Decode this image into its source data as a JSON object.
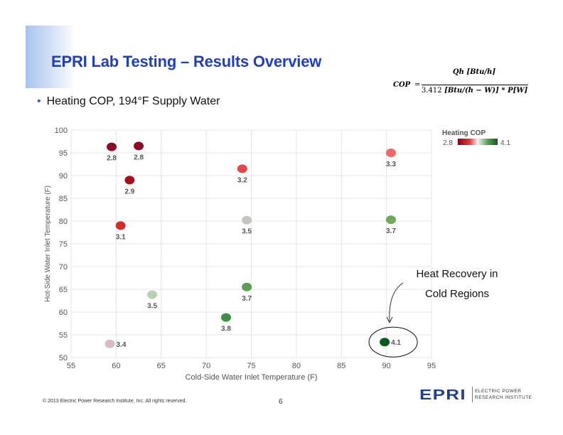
{
  "slide": {
    "title": "EPRI Lab Testing – Results Overview",
    "bullet": "Heating COP, 194°F Supply Water",
    "footer": "© 2013 Electric Power Research Institute, Inc. All rights reserved.",
    "page_number": "6",
    "logo": {
      "mark": "EPRI",
      "line1": "ELECTRIC POWER",
      "line2": "RESEARCH INSTITUTE"
    },
    "formula": {
      "lhs": "COP",
      "eq": "=",
      "numerator": "Qh [Btu/h]",
      "denominator_const": "3.412",
      "denominator_rest": "[Btu/(h − W)] * P[W]"
    },
    "annotation": {
      "line1": "Heat Recovery in",
      "line2": "Cold Regions"
    }
  },
  "chart_data": {
    "type": "scatter",
    "xlabel": "Cold-Side Water Inlet Temperature (F)",
    "ylabel": "Hot-Side Water Inlet Temperature (F)",
    "xlim": [
      55,
      95
    ],
    "ylim": [
      50,
      100
    ],
    "xticks": [
      55,
      60,
      65,
      70,
      75,
      80,
      85,
      90,
      95
    ],
    "yticks": [
      50,
      55,
      60,
      65,
      70,
      75,
      80,
      85,
      90,
      95,
      100
    ],
    "grid": true,
    "legend": {
      "title": "Heating COP",
      "min": "2.8",
      "max": "4.1",
      "placement": "top-right",
      "colors": [
        "#8b0018",
        "#e23b3b",
        "#f2f2f2",
        "#5aa05a",
        "#0f5a1e"
      ]
    },
    "points": [
      {
        "x": 59.5,
        "y": 96.3,
        "cop": "2.8",
        "color": "#8b0d24"
      },
      {
        "x": 62.5,
        "y": 96.5,
        "cop": "2.8",
        "color": "#8b0d24"
      },
      {
        "x": 61.5,
        "y": 89.0,
        "cop": "2.9",
        "color": "#a5101e"
      },
      {
        "x": 60.5,
        "y": 79.0,
        "cop": "3.1",
        "color": "#d42a2a"
      },
      {
        "x": 74.0,
        "y": 91.5,
        "cop": "3.2",
        "color": "#e24848"
      },
      {
        "x": 90.5,
        "y": 95.0,
        "cop": "3.3",
        "color": "#ee6a6a"
      },
      {
        "x": 59.3,
        "y": 53.0,
        "cop": "3.4",
        "color": "#d8bcc0"
      },
      {
        "x": 64.0,
        "y": 63.8,
        "cop": "3.5",
        "color": "#b8cfb2"
      },
      {
        "x": 74.5,
        "y": 80.2,
        "cop": "3.5",
        "color": "#c4c4c0"
      },
      {
        "x": 74.5,
        "y": 65.5,
        "cop": "3.7",
        "color": "#5a9e50"
      },
      {
        "x": 90.5,
        "y": 80.3,
        "cop": "3.7",
        "color": "#6fa95e"
      },
      {
        "x": 72.2,
        "y": 58.8,
        "cop": "3.8",
        "color": "#3f8f3f"
      },
      {
        "x": 89.8,
        "y": 53.4,
        "cop": "4.1",
        "color": "#0b5a1a"
      }
    ]
  }
}
